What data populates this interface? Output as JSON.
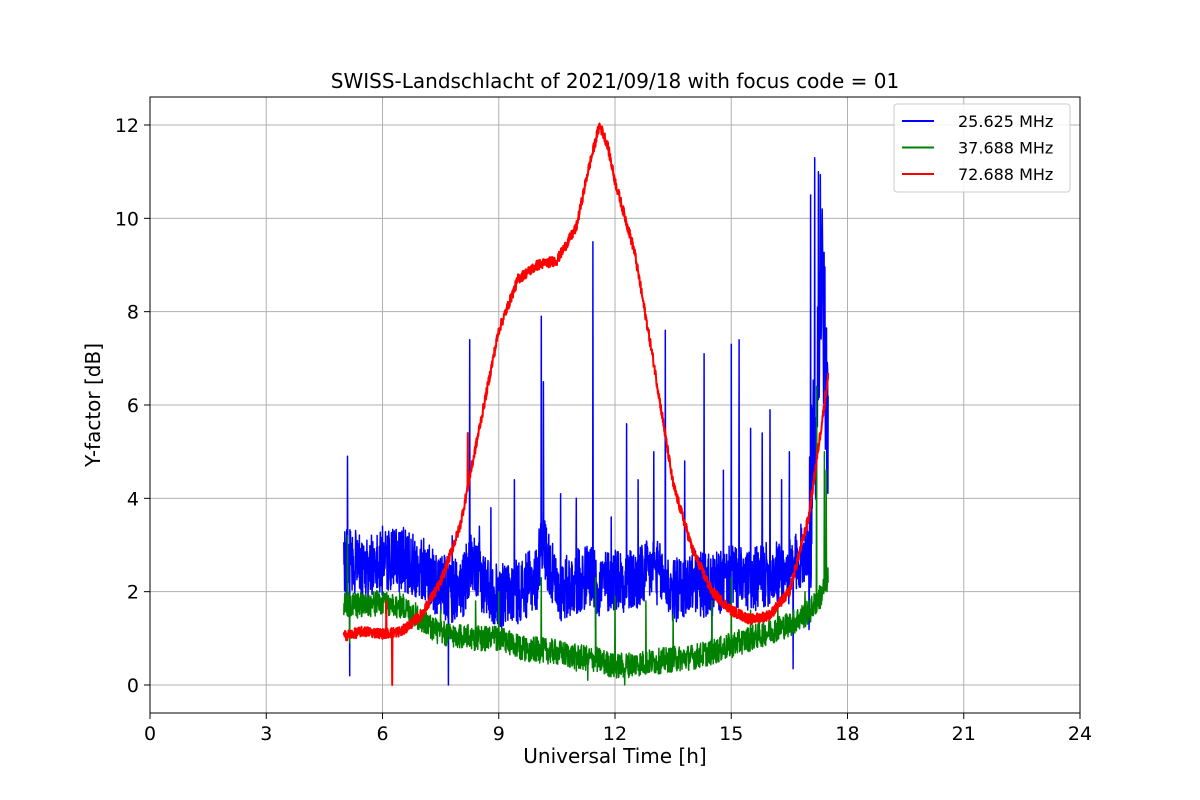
{
  "chart_data": {
    "type": "line",
    "title": "SWISS-Landschlacht of 2021/09/18 with focus code = 01",
    "xlabel": "Universal Time [h]",
    "ylabel": "Y-factor [dB]",
    "xlim": [
      0,
      24
    ],
    "ylim": [
      -0.6,
      12.6
    ],
    "xticks": [
      "0",
      "3",
      "6",
      "9",
      "12",
      "15",
      "18",
      "21",
      "24"
    ],
    "yticks": [
      "0",
      "2",
      "4",
      "6",
      "8",
      "10",
      "12"
    ],
    "grid": true,
    "legend_position": "top-right",
    "series": [
      {
        "name": "25.625 MHz",
        "color": "#0000ff",
        "x": [
          5.0,
          5.2,
          5.5,
          6.0,
          6.5,
          7.0,
          7.5,
          8.0,
          8.3,
          8.6,
          9.0,
          9.5,
          10.0,
          10.1,
          10.5,
          11.0,
          11.4,
          11.5,
          12.0,
          12.5,
          13.0,
          13.5,
          14.0,
          14.5,
          15.0,
          15.5,
          16.0,
          16.5,
          17.0,
          17.2,
          17.3,
          17.5
        ],
        "y": [
          2.6,
          2.7,
          2.5,
          2.6,
          2.7,
          2.5,
          2.1,
          2.0,
          2.6,
          2.2,
          1.9,
          2.0,
          2.3,
          3.2,
          2.0,
          2.2,
          2.4,
          2.1,
          2.3,
          2.2,
          2.5,
          2.0,
          2.2,
          2.1,
          2.3,
          2.2,
          2.4,
          2.4,
          3.0,
          6.0,
          9.0,
          5.5
        ],
        "spikes": [
          [
            5.1,
            4.9
          ],
          [
            5.15,
            0.2
          ],
          [
            5.6,
            3.1
          ],
          [
            6.0,
            3.4
          ],
          [
            6.5,
            3.3
          ],
          [
            7.0,
            3.1
          ],
          [
            7.7,
            0.0
          ],
          [
            7.8,
            3.2
          ],
          [
            8.25,
            7.4
          ],
          [
            8.5,
            3.4
          ],
          [
            8.8,
            3.8
          ],
          [
            9.4,
            4.4
          ],
          [
            10.1,
            7.9
          ],
          [
            10.15,
            6.5
          ],
          [
            10.6,
            4.1
          ],
          [
            11.0,
            4.0
          ],
          [
            11.43,
            9.5
          ],
          [
            11.5,
            1.2
          ],
          [
            11.9,
            3.6
          ],
          [
            12.3,
            5.6
          ],
          [
            12.6,
            4.4
          ],
          [
            13.0,
            5.0
          ],
          [
            13.3,
            7.6
          ],
          [
            13.8,
            4.8
          ],
          [
            14.3,
            7.1
          ],
          [
            14.5,
            0.7
          ],
          [
            14.8,
            4.6
          ],
          [
            15.0,
            7.3
          ],
          [
            15.2,
            7.4
          ],
          [
            15.5,
            5.5
          ],
          [
            15.8,
            5.4
          ],
          [
            16.0,
            5.9
          ],
          [
            16.3,
            4.4
          ],
          [
            16.5,
            5.0
          ],
          [
            16.6,
            0.35
          ],
          [
            17.05,
            10.5
          ],
          [
            17.15,
            11.3
          ],
          [
            17.25,
            11.0
          ],
          [
            17.35,
            10.2
          ],
          [
            17.45,
            7.5
          ]
        ]
      },
      {
        "name": "37.688 MHz",
        "color": "#008000",
        "x": [
          5.0,
          5.3,
          5.8,
          6.5,
          7.0,
          7.5,
          8.0,
          8.5,
          9.0,
          9.5,
          10.0,
          10.5,
          11.0,
          11.5,
          12.0,
          12.5,
          13.0,
          13.5,
          14.0,
          14.5,
          15.0,
          15.5,
          16.0,
          16.5,
          17.0,
          17.3,
          17.5
        ],
        "y": [
          1.7,
          1.7,
          1.75,
          1.7,
          1.4,
          1.1,
          1.05,
          1.0,
          1.0,
          0.8,
          0.75,
          0.7,
          0.6,
          0.55,
          0.4,
          0.45,
          0.5,
          0.55,
          0.6,
          0.7,
          0.85,
          1.0,
          1.15,
          1.3,
          1.55,
          1.9,
          2.3
        ],
        "spikes": [
          [
            5.1,
            3.2
          ],
          [
            5.15,
            0.9
          ],
          [
            7.5,
            1.6
          ],
          [
            8.4,
            1.8
          ],
          [
            9.0,
            2.0
          ],
          [
            10.1,
            2.3
          ],
          [
            11.0,
            0.3
          ],
          [
            11.3,
            0.1
          ],
          [
            11.5,
            2.3
          ],
          [
            12.0,
            1.9
          ],
          [
            12.25,
            0.0
          ],
          [
            12.8,
            1.8
          ],
          [
            13.5,
            1.5
          ],
          [
            14.5,
            1.8
          ],
          [
            15.0,
            2.3
          ],
          [
            15.5,
            1.6
          ],
          [
            16.2,
            1.7
          ],
          [
            16.9,
            2.0
          ],
          [
            17.2,
            6.4
          ],
          [
            17.4,
            5.0
          ],
          [
            17.45,
            4.6
          ]
        ]
      },
      {
        "name": "72.688 MHz",
        "color": "#ff0000",
        "x": [
          5.0,
          5.5,
          6.0,
          6.5,
          7.0,
          7.5,
          8.0,
          8.5,
          9.0,
          9.5,
          10.0,
          10.5,
          11.0,
          11.3,
          11.6,
          11.8,
          12.0,
          12.5,
          13.0,
          13.5,
          14.0,
          14.5,
          15.0,
          15.5,
          16.0,
          16.5,
          17.0,
          17.5
        ],
        "y": [
          1.05,
          1.15,
          1.1,
          1.15,
          1.5,
          2.2,
          3.4,
          5.5,
          7.6,
          8.7,
          9.0,
          9.1,
          9.8,
          11.0,
          12.0,
          11.6,
          10.8,
          9.3,
          6.9,
          4.3,
          2.9,
          2.0,
          1.6,
          1.4,
          1.5,
          2.0,
          3.6,
          6.6
        ],
        "spikes": [
          [
            6.25,
            0.0
          ],
          [
            6.1,
            1.8
          ],
          [
            8.2,
            5.4
          ]
        ]
      }
    ]
  }
}
